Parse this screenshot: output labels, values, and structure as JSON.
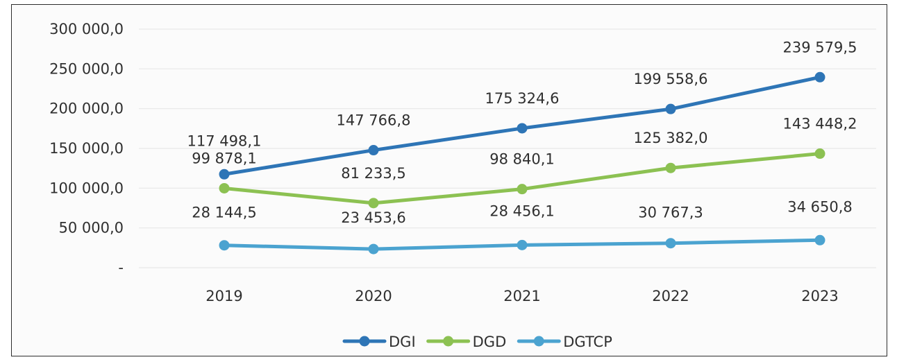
{
  "chart_data": {
    "type": "line",
    "title": "",
    "xlabel": "",
    "ylabel": "",
    "categories": [
      "2019",
      "2020",
      "2021",
      "2022",
      "2023"
    ],
    "ylim": [
      0,
      300000
    ],
    "y_ticks": [
      "-",
      "50 000,0",
      "100 000,0",
      "150 000,0",
      "200 000,0",
      "250 000,0",
      "300 000,0"
    ],
    "grid": true,
    "legend_position": "bottom",
    "series": [
      {
        "name": "DGI",
        "color": "#2e75b6",
        "values": [
          117498.1,
          147766.8,
          175324.6,
          199558.6,
          239579.5
        ],
        "labels": [
          "117 498,1",
          "147 766,8",
          "175 324,6",
          "199 558,6",
          "239 579,5"
        ]
      },
      {
        "name": "DGD",
        "color": "#8cc152",
        "values": [
          99878.1,
          81233.5,
          98840.1,
          125382.0,
          143448.2
        ],
        "labels": [
          "99 878,1",
          "81 233,5",
          "98 840,1",
          "125 382,0",
          "143 448,2"
        ]
      },
      {
        "name": "DGTCP",
        "color": "#4ba3d0",
        "values": [
          28144.5,
          23453.6,
          28456.1,
          30767.3,
          34650.8
        ],
        "labels": [
          "28 144,5",
          "23 453,6",
          "28 456,1",
          "30 767,3",
          "34 650,8"
        ]
      }
    ]
  }
}
